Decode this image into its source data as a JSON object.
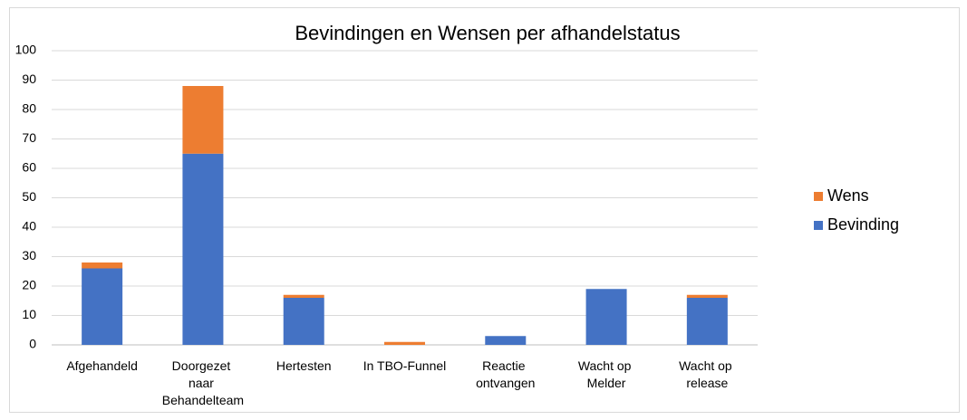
{
  "chart_data": {
    "type": "stacked_bar",
    "title": "Bevindingen en Wensen per afhandelstatus",
    "categories": [
      "Afgehandeld",
      "Doorgezet naar Behandelteam",
      "Hertesten",
      "In TBO-Funnel",
      "Reactie ontvangen",
      "Wacht op Melder",
      "Wacht op release"
    ],
    "series": [
      {
        "name": "Bevinding",
        "color": "#4472c4",
        "values": [
          26,
          65,
          16,
          0,
          3,
          19,
          16
        ]
      },
      {
        "name": "Wens",
        "color": "#ed7d31",
        "values": [
          2,
          23,
          1,
          1,
          0,
          0,
          1
        ]
      }
    ],
    "ylim": [
      0,
      100
    ],
    "yticks": [
      0,
      10,
      20,
      30,
      40,
      50,
      60,
      70,
      80,
      90,
      100
    ],
    "grid": true,
    "legend": "right"
  }
}
